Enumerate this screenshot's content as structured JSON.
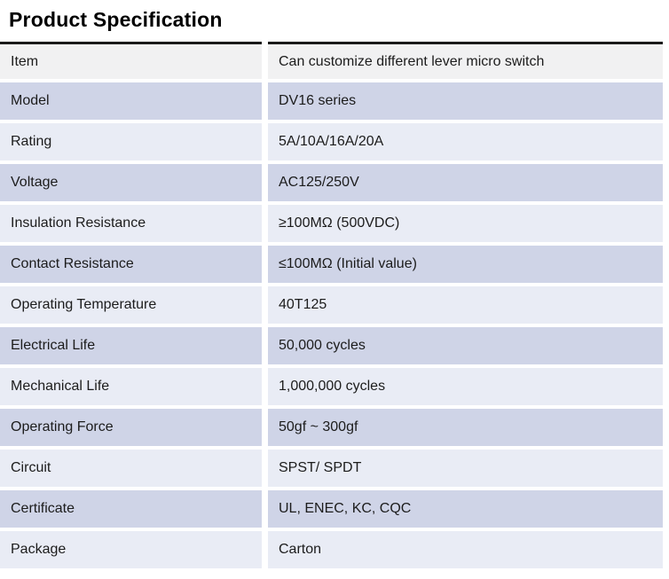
{
  "title": "Product Specification",
  "colors": {
    "border_top": "#1a1a1a",
    "header_row_bg": "#f1f1f2",
    "row_lavender_bg": "#cfd4e7",
    "row_pale_bg": "#e9ecf5",
    "text": "#1c1c1c",
    "page_bg": "#ffffff"
  },
  "table": {
    "rows": [
      {
        "label": "Item",
        "value": "Can customize different lever micro switch"
      },
      {
        "label": "Model",
        "value": "DV16 series"
      },
      {
        "label": "Rating",
        "value": "5A/10A/16A/20A"
      },
      {
        "label": "Voltage",
        "value": "AC125/250V"
      },
      {
        "label": "Insulation Resistance",
        "value": "≥100MΩ (500VDC)"
      },
      {
        "label": "Contact Resistance",
        "value": "≤100MΩ (Initial value)"
      },
      {
        "label": "Operating Temperature",
        "value": "40T125"
      },
      {
        "label": "Electrical Life",
        "value": "50,000 cycles"
      },
      {
        "label": "Mechanical Life",
        "value": "1,000,000 cycles"
      },
      {
        "label": "Operating Force",
        "value": "50gf ~ 300gf"
      },
      {
        "label": "Circuit",
        "value": "SPST/ SPDT"
      },
      {
        "label": "Certificate",
        "value": "UL, ENEC, KC, CQC"
      },
      {
        "label": "Package",
        "value": "Carton"
      }
    ]
  }
}
